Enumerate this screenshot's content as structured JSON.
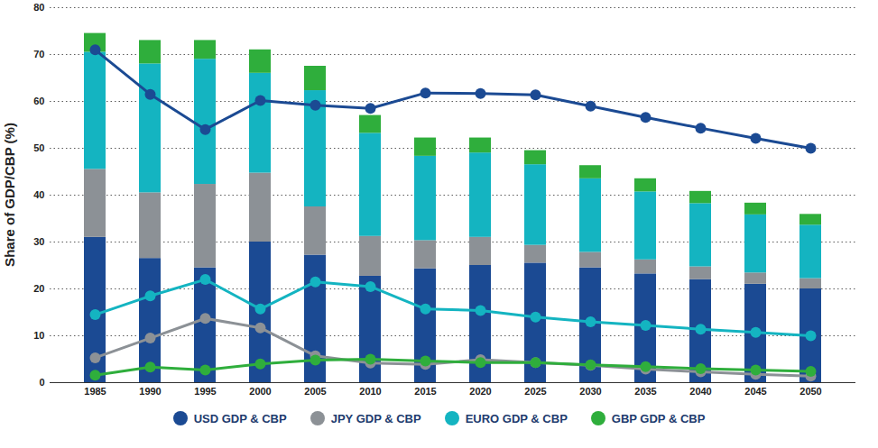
{
  "chart_data": {
    "type": "bar",
    "stacked": true,
    "grid": true,
    "legend": "bottom",
    "y_label": "Share of GDP/CBP (%)",
    "categories": [
      "1985",
      "1990",
      "1995",
      "2000",
      "2005",
      "2010",
      "2015",
      "2020",
      "2025",
      "2030",
      "2035",
      "2040",
      "2045",
      "2050"
    ],
    "ylim": [
      0,
      80
    ],
    "yticks": [
      0,
      10,
      20,
      30,
      40,
      50,
      60,
      70,
      80
    ],
    "series": [
      {
        "name": "USD GDP & CBP",
        "type": "bar",
        "color": "#1b4a93",
        "values": [
          31,
          26.5,
          24.5,
          30,
          27.2,
          22.7,
          24.3,
          25,
          25.5,
          24.5,
          23.2,
          22,
          21,
          20
        ]
      },
      {
        "name": "JPY GDP & CBP",
        "type": "bar",
        "color": "#8c9196",
        "values": [
          14.5,
          14,
          17.8,
          14.7,
          10.3,
          8.5,
          6,
          6,
          3.8,
          3.3,
          3,
          2.7,
          2.4,
          2.2
        ]
      },
      {
        "name": "EURO GDP & CBP",
        "type": "bar",
        "color": "#14b4c1",
        "values": [
          25,
          27.5,
          26.7,
          21.3,
          24.8,
          22,
          18,
          18,
          17.2,
          15.7,
          14.5,
          13.5,
          12.4,
          11.4
        ]
      },
      {
        "name": "GBP GDP & CBP",
        "type": "bar",
        "color": "#2fae3c",
        "values": [
          4,
          5,
          4,
          5,
          5.2,
          3.8,
          3.9,
          3.2,
          3,
          2.8,
          2.8,
          2.6,
          2.5,
          2.3
        ]
      },
      {
        "name": "USD GDP & CBP",
        "type": "line",
        "marker": "circle",
        "color": "#1b4a93",
        "values": [
          71,
          61.5,
          54,
          60.2,
          59.2,
          58.5,
          61.8,
          61.7,
          61.4,
          59,
          56.6,
          54.3,
          52.1,
          50
        ]
      },
      {
        "name": "JPY GDP & CBP",
        "type": "line",
        "marker": "circle",
        "color": "#8c9196",
        "values": [
          5.3,
          9.5,
          13.7,
          11.7,
          5.7,
          4.2,
          3.9,
          4.9,
          4.3,
          3.7,
          2.9,
          2.3,
          1.8,
          1.4
        ]
      },
      {
        "name": "EURO GDP & CBP",
        "type": "line",
        "marker": "circle",
        "color": "#14b4c1",
        "values": [
          14.5,
          18.5,
          22,
          15.7,
          21.5,
          20.5,
          15.7,
          15.4,
          14,
          13,
          12.2,
          11.4,
          10.7,
          10
        ]
      },
      {
        "name": "GBP GDP & CBP",
        "type": "line",
        "marker": "circle",
        "color": "#2fae3c",
        "values": [
          1.6,
          3.3,
          2.7,
          4,
          4.8,
          5,
          4.6,
          4.3,
          4.3,
          3.8,
          3.4,
          3.0,
          2.7,
          2.4
        ]
      }
    ]
  }
}
